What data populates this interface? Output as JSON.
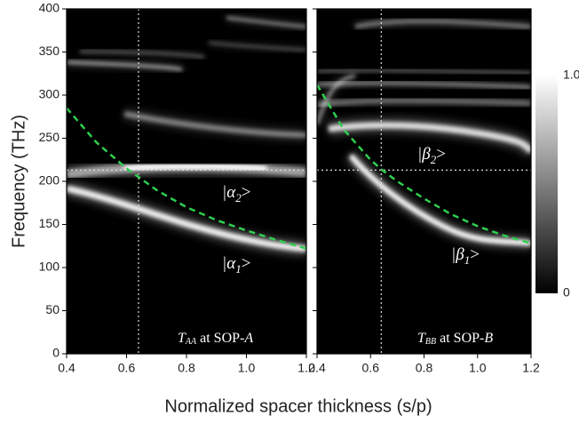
{
  "chart_data": [
    {
      "type": "heatmap",
      "y_label": "Frequency (THz)",
      "x_label": "Normalized spacer thickness (s/p)",
      "xlim": [
        0.4,
        1.2
      ],
      "xticks": [
        0.4,
        0.6,
        0.8,
        {
          "value": 1,
          "label": "1.0"
        },
        1.2
      ],
      "ylim": [
        0,
        400
      ],
      "yticks": [
        0,
        50,
        100,
        150,
        200,
        250,
        300,
        350,
        400
      ],
      "vline": 0.64,
      "hline": 213,
      "series": [
        {
          "color": "#2fcf4f",
          "x": [
            0.4,
            0.5,
            0.6,
            0.7,
            0.8,
            0.9,
            1,
            1.1,
            1.2
          ],
          "values": [
            285,
            245,
            215,
            190,
            170,
            155,
            143,
            132,
            122
          ]
        }
      ],
      "mode_labels": [
        {
          "text": "|α",
          "sub": "2",
          "end": ">"
        },
        {
          "text": "|α",
          "sub": "1",
          "end": ">"
        }
      ],
      "panel_label": {
        "symbol": "T",
        "sub": "AA",
        "text": " at SOP-",
        "mode": "A"
      }
    },
    {
      "type": "heatmap",
      "xlim": [
        0.4,
        1.2
      ],
      "xticks": [
        0.4,
        0.6,
        0.8,
        {
          "value": 1,
          "label": "1.0"
        },
        1.2
      ],
      "ylim": [
        0,
        400
      ],
      "vline": 0.64,
      "hline": 213,
      "series": [
        {
          "color": "#2fcf4f",
          "x": [
            0.4,
            0.5,
            0.6,
            0.64,
            0.7,
            0.8,
            0.9,
            1,
            1.1,
            1.2
          ],
          "values": [
            312,
            260,
            225,
            214,
            200,
            180,
            162,
            148,
            137,
            128
          ]
        }
      ],
      "mode_labels": [
        {
          "text": "|β",
          "sub": "2",
          "end": ">"
        },
        {
          "text": "|β",
          "sub": "1",
          "end": ">"
        }
      ],
      "panel_label": {
        "symbol": "T",
        "sub": "BB",
        "text": " at SOP-",
        "mode": "B"
      },
      "colorbar": {
        "lim": [
          0,
          1
        ],
        "ticks": [
          {
            "value": 1,
            "label": "1.0"
          },
          0
        ]
      }
    }
  ]
}
